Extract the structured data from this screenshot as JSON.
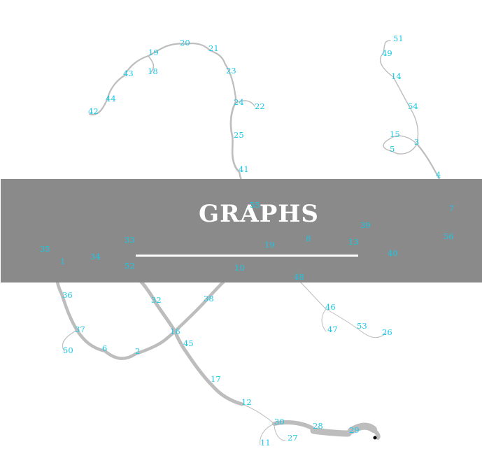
{
  "banner": {
    "title": "GRAPHS"
  },
  "colors": {
    "background": "#ffffff",
    "band": "#8a8a8a",
    "edge": "#bdbdbd",
    "label": "#19c8e6",
    "title": "#ffffff"
  },
  "nodes": [
    "51",
    "49",
    "14",
    "54",
    "15",
    "5",
    "3",
    "4",
    "7",
    "56",
    "40",
    "39",
    "13",
    "8",
    "19",
    "10",
    "38",
    "16",
    "45",
    "17",
    "12",
    "30",
    "28",
    "29",
    "24",
    "27",
    "11",
    "48",
    "46",
    "47",
    "53",
    "26",
    "55",
    "41",
    "25",
    "22",
    "23",
    "21",
    "20",
    "19",
    "18",
    "43",
    "44",
    "42",
    "35",
    "1",
    "34",
    "33",
    "52",
    "32",
    "36",
    "37",
    "50",
    "6",
    "2"
  ]
}
